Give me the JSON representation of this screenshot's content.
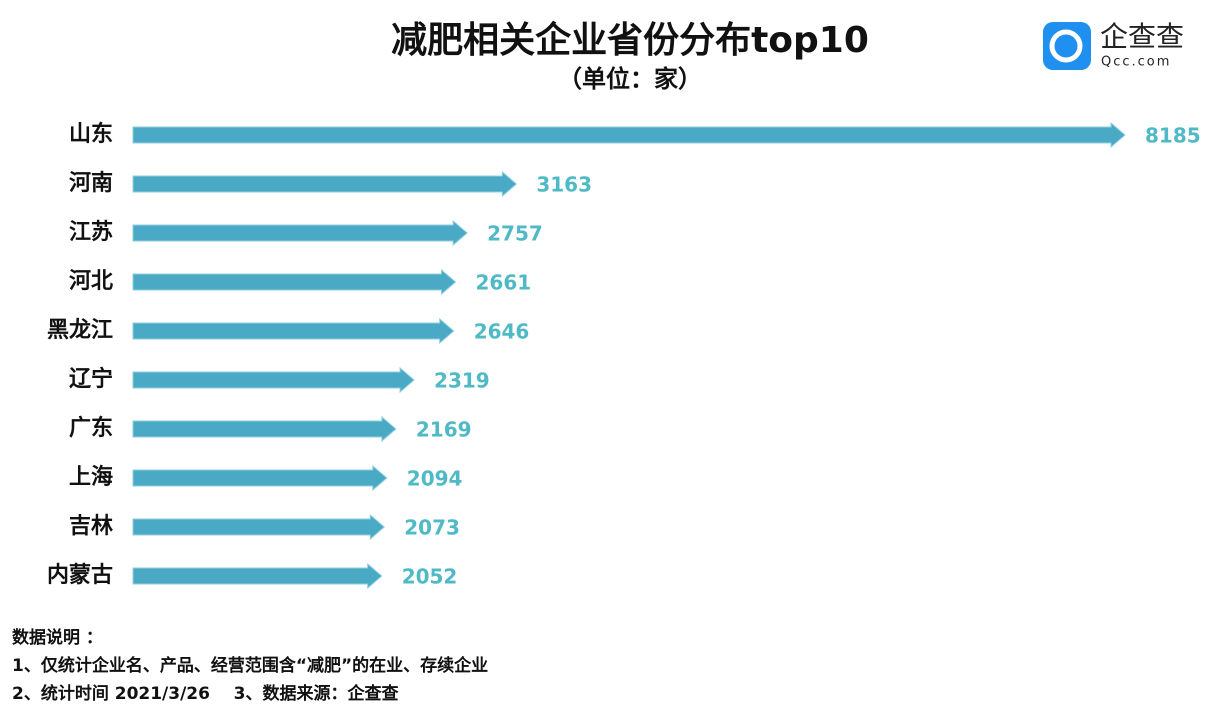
{
  "chart_data": {
    "type": "bar",
    "orientation": "horizontal",
    "title": "减肥相关企业省份分布top10",
    "subtitle": "（单位：家）",
    "categories": [
      "山东",
      "河南",
      "江苏",
      "河北",
      "黑龙江",
      "辽宁",
      "广东",
      "上海",
      "吉林",
      "内蒙古"
    ],
    "values": [
      8185,
      3163,
      2757,
      2661,
      2646,
      2319,
      2169,
      2094,
      2073,
      2052
    ],
    "color": "#4aa9c5",
    "label_color": "#4fb9c6"
  },
  "notes": {
    "heading": "数据说明 ：",
    "lines": [
      "1、仅统计企业名、产品、经营范围含“减肥”的在业、存续企业",
      "2、统计时间 2021/3/26    3、数据来源：企查查"
    ]
  },
  "logo": {
    "name": "企查查",
    "domain": "Qcc.com"
  }
}
